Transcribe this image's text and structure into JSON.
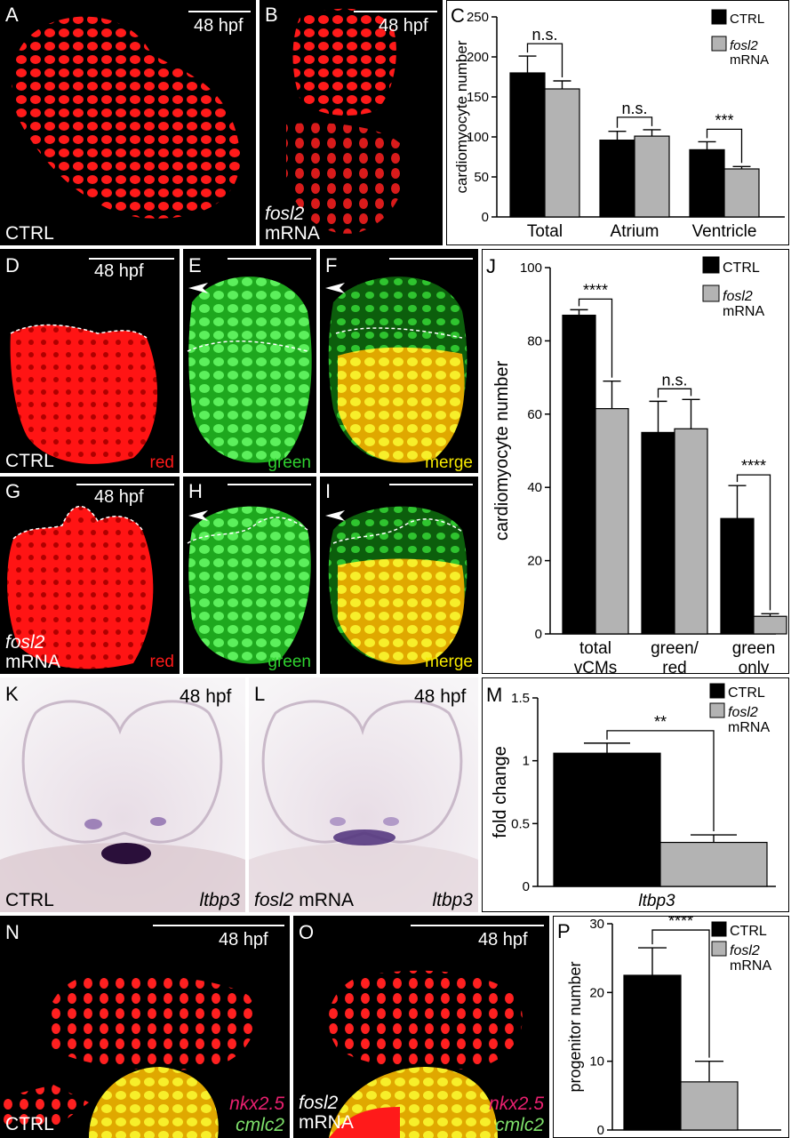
{
  "labels": {
    "A": "A",
    "B": "B",
    "C": "C",
    "D": "D",
    "E": "E",
    "F": "F",
    "G": "G",
    "H": "H",
    "I": "I",
    "J": "J",
    "K": "K",
    "L": "L",
    "M": "M",
    "N": "N",
    "O": "O",
    "P": "P"
  },
  "common": {
    "hpf": "48 hpf",
    "ctrl": "CTRL",
    "gene": "fosl2",
    "mrna": "mRNA",
    "fosl2_mrna": "fosl2 mRNA",
    "red": "red",
    "green": "green",
    "merge": "merge",
    "ltbp3": "ltbp3",
    "nkx": "nkx2.5",
    "cmlc": "cmlc2"
  },
  "colors": {
    "ctrl_bar": "#000000",
    "fosl2_bar": "#b3b3b3",
    "red": "#ff1a1a",
    "green": "#2fd12f",
    "yellow": "#f5e700",
    "magenta": "#e8206f",
    "ish_bg": "#f3eef0",
    "ish_stain": "#6a4a9a"
  },
  "chart_data": [
    {
      "panel": "C",
      "type": "bar",
      "ylabel": "cardiomyocyte number",
      "ylim": [
        0,
        250
      ],
      "yticks": [
        "0",
        "50",
        "100",
        "150",
        "200",
        "250"
      ],
      "categories": [
        "Total",
        "Atrium",
        "Ventricle"
      ],
      "series": [
        {
          "name": "CTRL",
          "values": [
            180,
            96,
            84
          ],
          "errors": [
            21,
            11,
            10
          ]
        },
        {
          "name": "fosl2 mRNA",
          "values": [
            160,
            101,
            60
          ],
          "errors": [
            10,
            8,
            3
          ]
        }
      ],
      "significance": [
        "n.s.",
        "n.s.",
        "***"
      ],
      "legend": "top-right"
    },
    {
      "panel": "J",
      "type": "bar",
      "ylabel": "cardiomyocyte number",
      "ylim": [
        0,
        100
      ],
      "yticks": [
        "0",
        "20",
        "40",
        "60",
        "80",
        "100"
      ],
      "categories": [
        [
          "total",
          "vCMs"
        ],
        [
          "green/",
          "red"
        ],
        [
          "green",
          "only"
        ]
      ],
      "series": [
        {
          "name": "CTRL",
          "values": [
            87,
            55,
            31.5
          ],
          "errors": [
            1.5,
            8.5,
            9
          ]
        },
        {
          "name": "fosl2 mRNA",
          "values": [
            61.5,
            56,
            4.8
          ],
          "errors": [
            7.5,
            8,
            0.7
          ]
        }
      ],
      "significance": [
        "****",
        "n.s.",
        "****"
      ],
      "legend": "top-right"
    },
    {
      "panel": "M",
      "type": "bar",
      "ylabel": "fold change",
      "xlabel": "ltbp3",
      "ylim": [
        0,
        1.5
      ],
      "yticks": [
        "0",
        "0.5",
        "1",
        "1.5"
      ],
      "categories": [
        ""
      ],
      "series": [
        {
          "name": "CTRL",
          "values": [
            1.06
          ],
          "errors": [
            0.08
          ]
        },
        {
          "name": "fosl2 mRNA",
          "values": [
            0.35
          ],
          "errors": [
            0.06
          ]
        }
      ],
      "significance": [
        "**"
      ],
      "legend": "top-right"
    },
    {
      "panel": "P",
      "type": "bar",
      "ylabel": "progenitor number",
      "ylim": [
        0,
        30
      ],
      "yticks": [
        "0",
        "10",
        "20",
        "30"
      ],
      "categories": [
        ""
      ],
      "series": [
        {
          "name": "CTRL",
          "values": [
            22.5
          ],
          "errors": [
            4
          ]
        },
        {
          "name": "fosl2 mRNA",
          "values": [
            7
          ],
          "errors": [
            3
          ]
        }
      ],
      "significance": [
        "****"
      ],
      "legend": "top-right"
    }
  ]
}
